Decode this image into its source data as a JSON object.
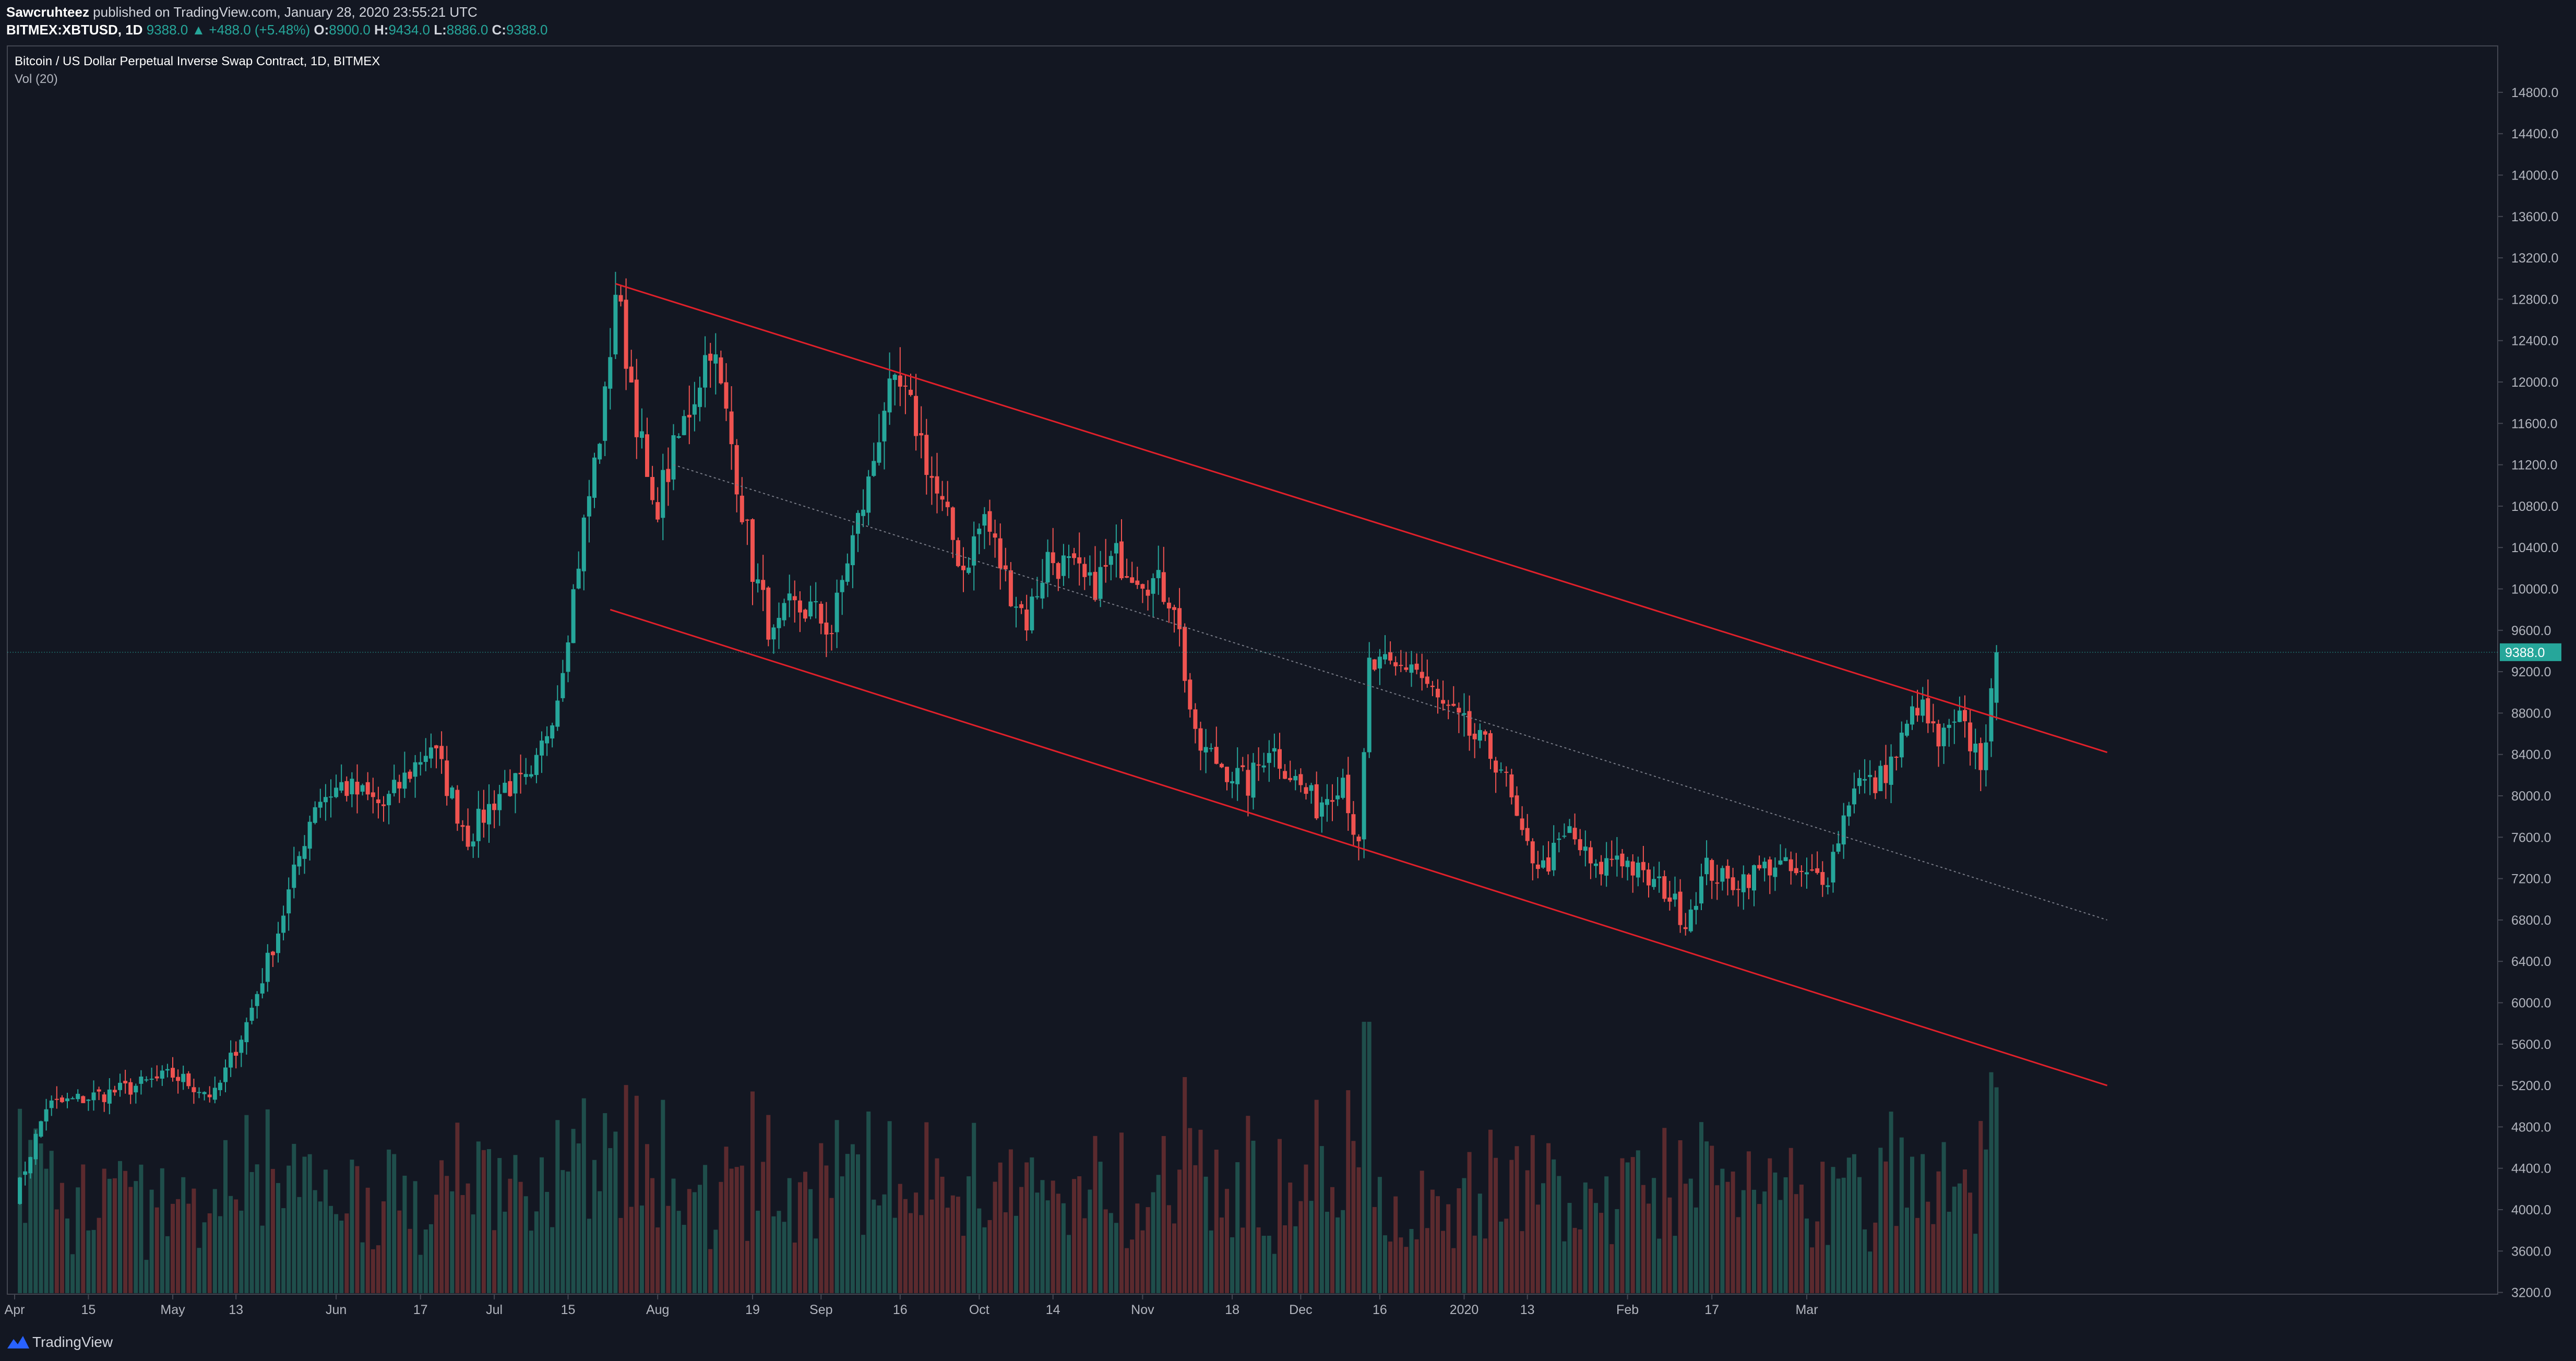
{
  "header": {
    "author": "Sawcruhteez",
    "published_text": " published on TradingView.com, January 28, 2020 23:55:21 UTC",
    "symbol": "BITMEX:XBTUSD, 1D",
    "last": "9388.0",
    "change": "▲ +488.0 (+5.48%)",
    "o_label": "O:",
    "o": "8900.0",
    "h_label": "H:",
    "h": "9434.0",
    "l_label": "L:",
    "l": "8886.0",
    "c_label": "C:",
    "c": "9388.0"
  },
  "legend": {
    "title": "Bitcoin / US Dollar Perpetual Inverse Swap Contract, 1D, BITMEX",
    "volume": "Vol (20)"
  },
  "footer": {
    "brand": "TradingView"
  },
  "colors": {
    "background": "#131722",
    "up": "#26a69a",
    "down": "#ef5350",
    "channel": "#e0202a",
    "mid": "#787b86",
    "grid": "#1e222d",
    "axis_text": "#b2b5be"
  },
  "chart_data": {
    "type": "candlestick",
    "last_price": 9388.0,
    "y_ticks": [
      "14800.0",
      "14400.0",
      "14000.0",
      "13600.0",
      "13200.0",
      "12800.0",
      "12400.0",
      "12000.0",
      "11600.0",
      "11200.0",
      "10800.0",
      "10400.0",
      "10000.0",
      "9600.0",
      "9200.0",
      "8800.0",
      "8400.0",
      "8000.0",
      "7600.0",
      "7200.0",
      "6800.0",
      "6400.0",
      "6000.0",
      "5600.0",
      "5200.0",
      "4800.0",
      "4400.0",
      "4000.0",
      "3600.0",
      "3200.0"
    ],
    "x_ticks": [
      "Apr",
      "15",
      "May",
      "13",
      "Jun",
      "17",
      "Jul",
      "15",
      "Aug",
      "19",
      "Sep",
      "16",
      "Oct",
      "14",
      "Nov",
      "18",
      "Dec",
      "16",
      "2020",
      "13",
      "Feb",
      "17",
      "Mar"
    ],
    "ylim": [
      3000,
      15000
    ],
    "x_range_days": [
      0,
      349
    ],
    "first_candle_date": "2019-04-01",
    "close_keypoints": [
      [
        0,
        4100
      ],
      [
        6,
        5000
      ],
      [
        20,
        5150
      ],
      [
        30,
        5300
      ],
      [
        38,
        5100
      ],
      [
        44,
        5800
      ],
      [
        50,
        6700
      ],
      [
        57,
        7950
      ],
      [
        62,
        8100
      ],
      [
        70,
        7900
      ],
      [
        79,
        8500
      ],
      [
        86,
        7600
      ],
      [
        93,
        8100
      ],
      [
        98,
        8100
      ],
      [
        103,
        9000
      ],
      [
        108,
        10600
      ],
      [
        112,
        11800
      ],
      [
        114,
        12900
      ],
      [
        117,
        12000
      ],
      [
        121,
        10700
      ],
      [
        125,
        11300
      ],
      [
        129,
        11900
      ],
      [
        132,
        12400
      ],
      [
        136,
        11400
      ],
      [
        140,
        10200
      ],
      [
        144,
        9500
      ],
      [
        147,
        9800
      ],
      [
        151,
        9800
      ],
      [
        155,
        9600
      ],
      [
        158,
        10300
      ],
      [
        162,
        11000
      ],
      [
        165,
        11800
      ],
      [
        168,
        11900
      ],
      [
        171,
        11600
      ],
      [
        175,
        10900
      ],
      [
        180,
        10200
      ],
      [
        184,
        10700
      ],
      [
        188,
        10100
      ],
      [
        192,
        9700
      ],
      [
        196,
        10300
      ],
      [
        200,
        10200
      ],
      [
        204,
        10000
      ],
      [
        209,
        10300
      ],
      [
        214,
        10150
      ],
      [
        220,
        9900
      ],
      [
        224,
        8500
      ],
      [
        229,
        8300
      ],
      [
        234,
        8100
      ],
      [
        238,
        8500
      ],
      [
        243,
        8150
      ],
      [
        247,
        7900
      ],
      [
        252,
        8200
      ],
      [
        255,
        7450
      ],
      [
        257,
        9250
      ],
      [
        262,
        9200
      ],
      [
        265,
        9300
      ],
      [
        270,
        8900
      ],
      [
        274,
        8700
      ],
      [
        278,
        8500
      ],
      [
        282,
        8300
      ],
      [
        286,
        7550
      ],
      [
        290,
        7300
      ],
      [
        295,
        7650
      ],
      [
        300,
        7250
      ],
      [
        304,
        7450
      ],
      [
        309,
        7200
      ],
      [
        313,
        7100
      ],
      [
        317,
        6800
      ],
      [
        321,
        7300
      ],
      [
        325,
        7150
      ],
      [
        330,
        7250
      ],
      [
        334,
        7350
      ],
      [
        339,
        7200
      ],
      [
        344,
        7250
      ],
      [
        349,
        8150
      ],
      [
        353,
        8100
      ],
      [
        357,
        8400
      ],
      [
        361,
        8900
      ],
      [
        365,
        8500
      ],
      [
        369,
        8700
      ],
      [
        373,
        8350
      ],
      [
        375,
        8900
      ],
      [
        376,
        9388
      ]
    ],
    "volume_max_label": "",
    "channel_upper": [
      [
        114,
        12950
      ],
      [
        376,
        8900
      ],
      [
        397,
        8420
      ]
    ],
    "channel_lower": [
      [
        113,
        9800
      ],
      [
        397,
        5200
      ]
    ],
    "channel_mid": [
      [
        125,
        11200
      ],
      [
        397,
        6800
      ]
    ]
  }
}
